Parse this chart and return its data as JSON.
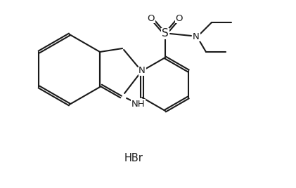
{
  "bg": "#ffffff",
  "lc": "#1a1a1a",
  "lw": 1.5,
  "fs": 9.5,
  "hbr": "HBr",
  "NH_label": "NH",
  "N_label": "N",
  "S_label": "S",
  "O_label": "O"
}
